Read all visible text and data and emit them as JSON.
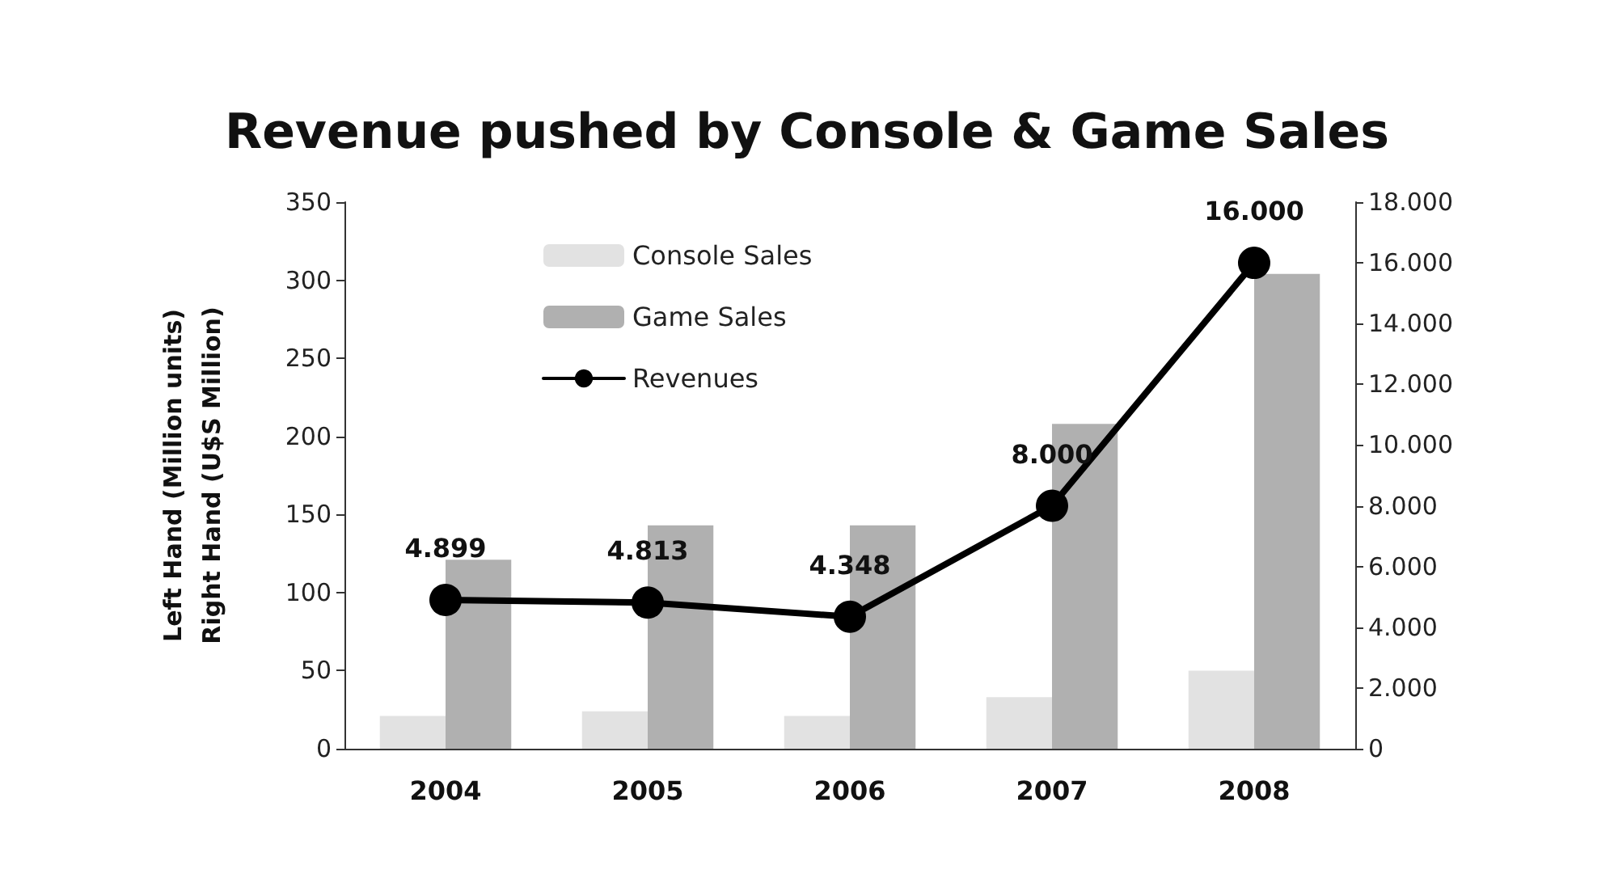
{
  "chart_data": {
    "type": "bar",
    "title": "Revenue pushed by Console & Game Sales",
    "ylabel": "Left Hand (Million units)\nRight Hand (U$S Million)",
    "categories": [
      "2004",
      "2005",
      "2006",
      "2007",
      "2008"
    ],
    "series": [
      {
        "name": "Console Sales",
        "color": "#e2e2e2",
        "values": [
          21,
          24,
          21,
          33,
          50
        ]
      },
      {
        "name": "Game Sales",
        "color": "#b0b0b0",
        "values": [
          121,
          143,
          143,
          208,
          304
        ]
      },
      {
        "name": "Revenues",
        "type": "line",
        "axis": "y2",
        "color": "#000000",
        "values": [
          4899,
          4813,
          4348,
          8000,
          16000
        ],
        "value_labels": [
          "4.899",
          "4.813",
          "4.348",
          "8.000",
          "16.000"
        ]
      }
    ],
    "ylim": [
      0,
      350
    ],
    "yticks": [
      0,
      50,
      100,
      150,
      200,
      250,
      300,
      350
    ],
    "y2lim": [
      0,
      18000
    ],
    "y2ticks": [
      {
        "value": 0,
        "label": "0"
      },
      {
        "value": 2000,
        "label": "2.000"
      },
      {
        "value": 4000,
        "label": "4.000"
      },
      {
        "value": 6000,
        "label": "6.000"
      },
      {
        "value": 8000,
        "label": "8.000"
      },
      {
        "value": 10000,
        "label": "10.000"
      },
      {
        "value": 12000,
        "label": "12.000"
      },
      {
        "value": 14000,
        "label": "14.000"
      },
      {
        "value": 16000,
        "label": "16.000"
      },
      {
        "value": 18000,
        "label": "18.000"
      }
    ],
    "grid": false,
    "legend": "top left",
    "marker": "circle",
    "line_style": "solid"
  }
}
